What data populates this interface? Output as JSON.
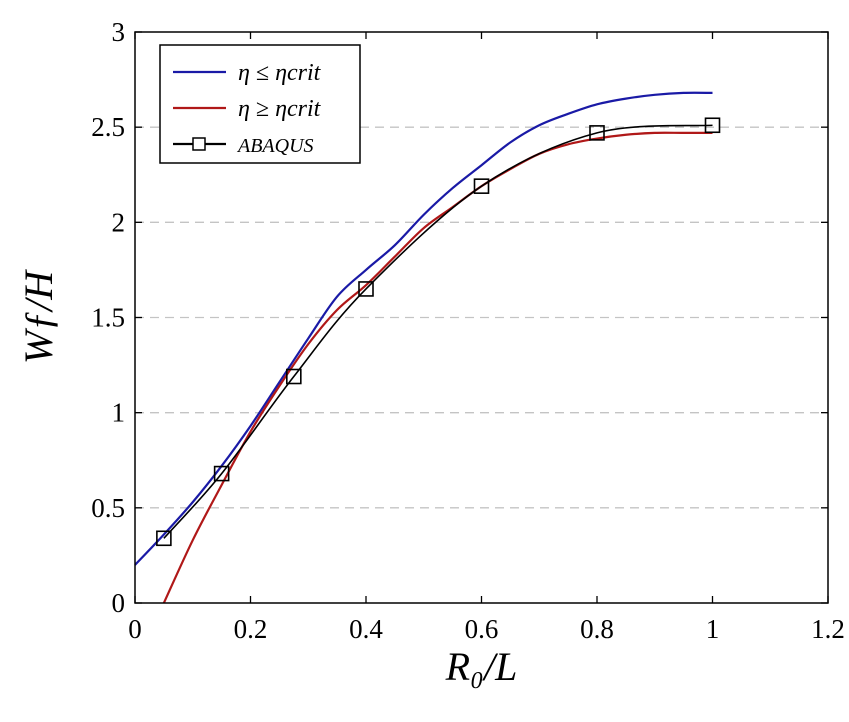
{
  "chart_data": {
    "type": "line",
    "xlabel": "R₀/L",
    "ylabel": "Wƒ/H",
    "xlim": [
      0,
      1.2
    ],
    "ylim": [
      0,
      3
    ],
    "x_ticks": [
      "0",
      "0.2",
      "0.4",
      "0.6",
      "0.8",
      "1",
      "1.2"
    ],
    "y_ticks": [
      "0",
      "0.5",
      "1",
      "1.5",
      "2",
      "2.5",
      "3"
    ],
    "grid": "horizontal dashed",
    "legend_position": "top-left",
    "series": [
      {
        "name": "η ≤ ηcrit",
        "color": "#1a1aa6",
        "style": "line",
        "x": [
          0,
          0.05,
          0.1,
          0.15,
          0.2,
          0.25,
          0.3,
          0.35,
          0.4,
          0.45,
          0.5,
          0.55,
          0.6,
          0.65,
          0.7,
          0.75,
          0.8,
          0.85,
          0.9,
          0.95,
          1.0
        ],
        "y": [
          0.2,
          0.36,
          0.53,
          0.72,
          0.93,
          1.16,
          1.39,
          1.61,
          1.75,
          1.88,
          2.04,
          2.18,
          2.3,
          2.42,
          2.51,
          2.57,
          2.62,
          2.65,
          2.67,
          2.68,
          2.68
        ]
      },
      {
        "name": "η ≥ ηcrit",
        "color": "#b01818",
        "style": "line",
        "x": [
          0.05,
          0.1,
          0.15,
          0.2,
          0.25,
          0.3,
          0.35,
          0.4,
          0.45,
          0.5,
          0.55,
          0.6,
          0.65,
          0.7,
          0.75,
          0.8,
          0.85,
          0.9,
          0.95,
          1.0
        ],
        "y": [
          0.0,
          0.33,
          0.62,
          0.9,
          1.14,
          1.36,
          1.54,
          1.67,
          1.82,
          1.97,
          2.08,
          2.19,
          2.28,
          2.36,
          2.41,
          2.44,
          2.46,
          2.47,
          2.47,
          2.47
        ]
      },
      {
        "name": "ABAQUS",
        "color": "#000000",
        "style": "line-square-markers",
        "x": [
          0.05,
          0.15,
          0.275,
          0.4,
          0.6,
          0.8,
          1.0
        ],
        "y": [
          0.34,
          0.68,
          1.19,
          1.65,
          2.19,
          2.47,
          2.51
        ]
      }
    ]
  }
}
